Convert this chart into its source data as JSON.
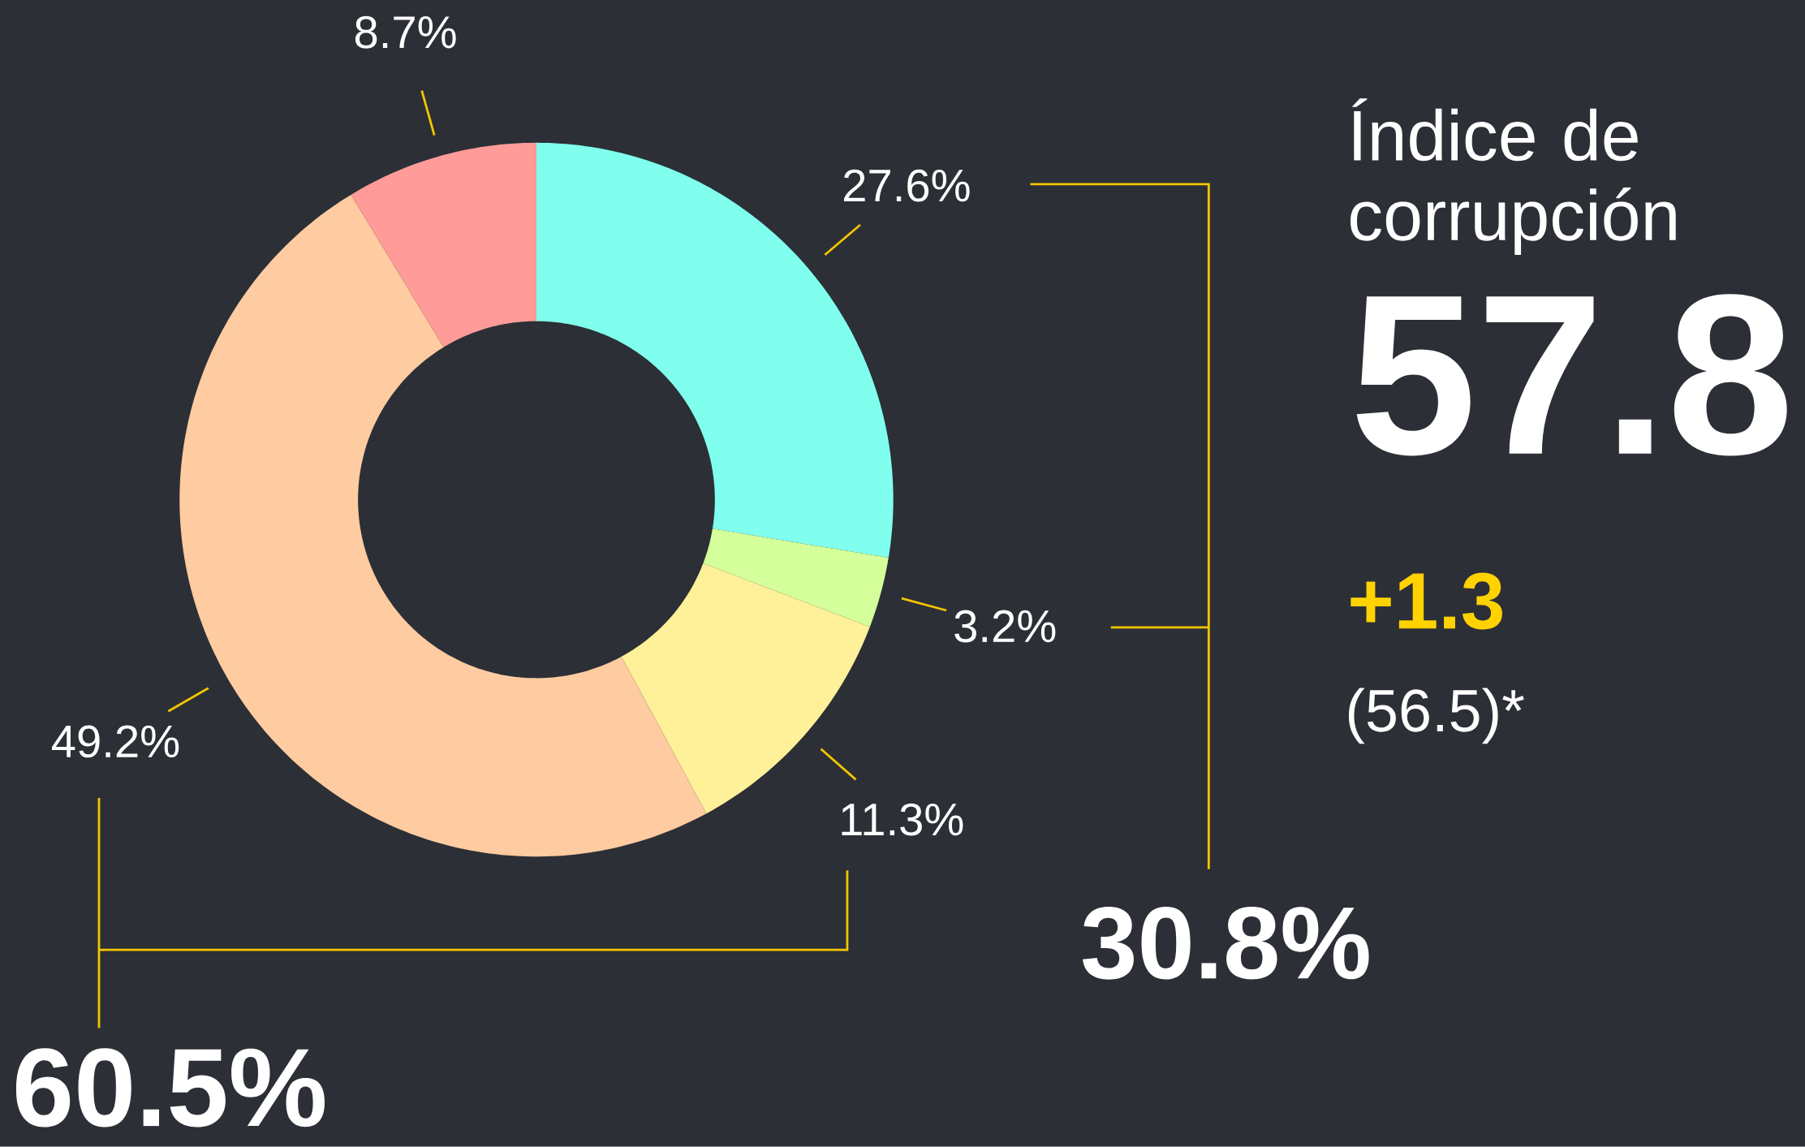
{
  "chart_data": {
    "type": "donut",
    "categories": [
      null,
      null,
      null,
      null,
      null
    ],
    "values": [
      27.6,
      3.2,
      11.3,
      49.2,
      8.7
    ],
    "colors": [
      "#80ffee",
      "#d4ff9a",
      "#fff09a",
      "#ffcba0",
      "#ff9b98"
    ],
    "value_labels": [
      "27.6%",
      "3.2%",
      "11.3%",
      "49.2%",
      "8.7%"
    ],
    "annotations": [
      "Índice de corrupción",
      "57.8",
      "+1.3",
      "(56.5)*",
      "30.8%",
      "60.5%"
    ]
  }
}
